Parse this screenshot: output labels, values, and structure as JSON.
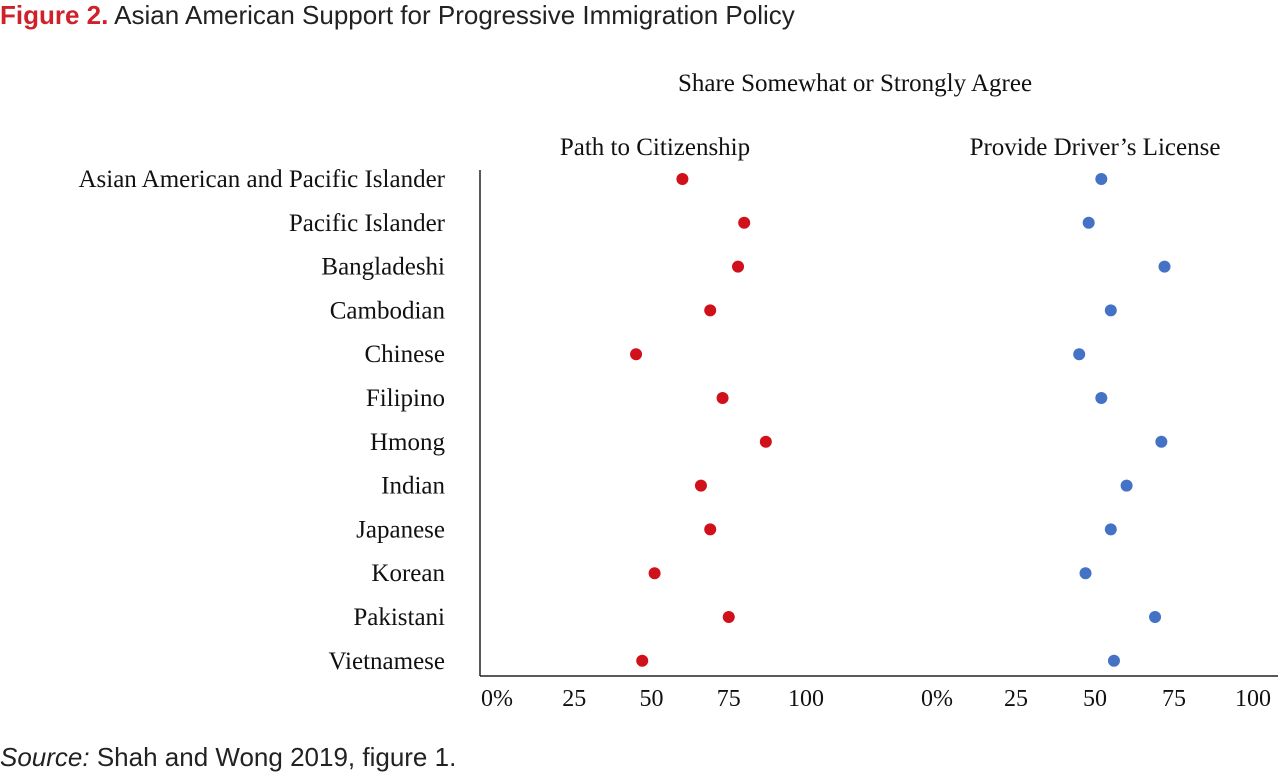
{
  "figure": {
    "label": "Figure 2.",
    "title": "Asian American Support for Progressive Immigration Policy"
  },
  "source": {
    "label": "Source:",
    "text": "Shah and Wong 2019, figure 1."
  },
  "chart_data": {
    "type": "scatter",
    "title": "Share Somewhat or Strongly Agree",
    "categories": [
      "Asian American and Pacific Islander",
      "Pacific Islander",
      "Bangladeshi",
      "Cambodian",
      "Chinese",
      "Filipino",
      "Hmong",
      "Indian",
      "Japanese",
      "Korean",
      "Pakistani",
      "Vietnamese"
    ],
    "xlim": [
      0,
      100
    ],
    "x_tick_labels": [
      "0%",
      "25",
      "50",
      "75",
      "100"
    ],
    "grid": false,
    "panels": [
      {
        "name": "Path to Citizenship",
        "color": "#d0111b",
        "values": [
          60,
          80,
          78,
          69,
          45,
          73,
          87,
          66,
          69,
          51,
          75,
          47
        ]
      },
      {
        "name": "Provide Driver’s License",
        "color": "#4472c4",
        "values": [
          52,
          48,
          72,
          55,
          45,
          52,
          71,
          60,
          55,
          47,
          69,
          56
        ]
      }
    ]
  }
}
